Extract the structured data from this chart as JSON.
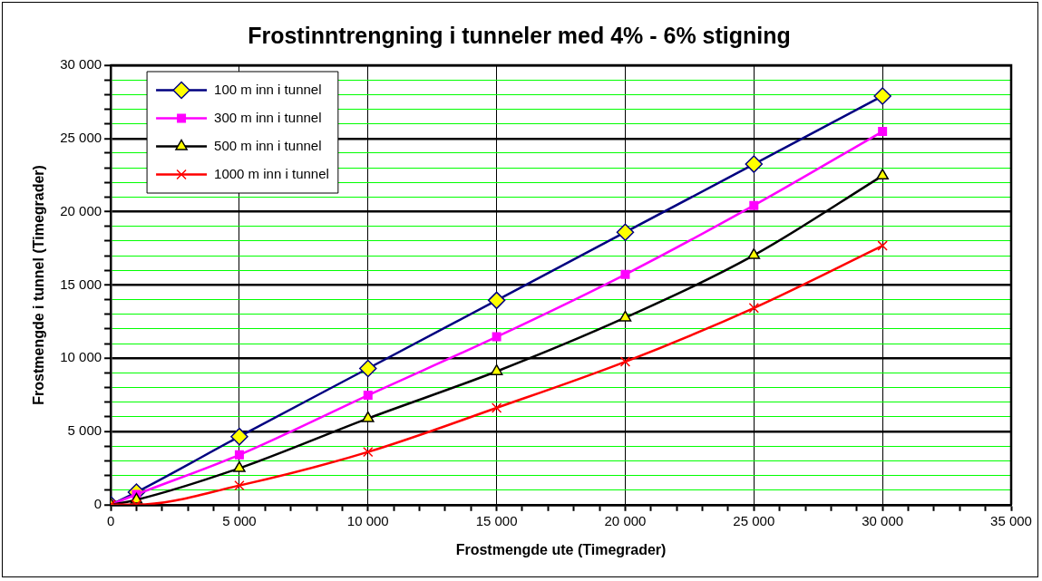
{
  "chart_data": {
    "type": "line",
    "title": "Frostinntrengning i tunneler med 4% - 6% stigning",
    "xlabel": "Frostmengde ute (Timegrader)",
    "ylabel": "Frostmengde i tunnel (Timegrader)",
    "x": [
      0,
      1000,
      5000,
      10000,
      15000,
      20000,
      25000,
      30000
    ],
    "series": [
      {
        "name": "100 m inn i tunnel",
        "color": "#000080",
        "marker": "diamond",
        "values": [
          0,
          850,
          4650,
          9300,
          13950,
          18600,
          23250,
          27900
        ]
      },
      {
        "name": "300 m inn i tunnel",
        "color": "#ff00ff",
        "marker": "square",
        "values": [
          0,
          700,
          3400,
          7470,
          11460,
          15720,
          20430,
          25480
        ]
      },
      {
        "name": "500 m inn i tunnel",
        "color": "#000000",
        "marker": "triangle",
        "values": [
          0,
          330,
          2490,
          5890,
          9100,
          12770,
          17030,
          22460
        ]
      },
      {
        "name": "1000 m inn i tunnel",
        "color": "#ff0000",
        "marker": "cross",
        "values": [
          0,
          0,
          1310,
          3600,
          6610,
          9760,
          13430,
          17680
        ]
      }
    ],
    "xlim": [
      0,
      35000
    ],
    "ylim": [
      0,
      30000
    ],
    "xticks": [
      {
        "value": 0,
        "label": "0"
      },
      {
        "value": 1000,
        "label": null
      },
      {
        "value": 2000,
        "label": null
      },
      {
        "value": 3000,
        "label": null
      },
      {
        "value": 4000,
        "label": null
      },
      {
        "value": 5000,
        "label": "5 000"
      },
      {
        "value": 6000,
        "label": null
      },
      {
        "value": 7000,
        "label": null
      },
      {
        "value": 8000,
        "label": null
      },
      {
        "value": 9000,
        "label": null
      },
      {
        "value": 10000,
        "label": "10 000"
      },
      {
        "value": 11000,
        "label": null
      },
      {
        "value": 12000,
        "label": null
      },
      {
        "value": 13000,
        "label": null
      },
      {
        "value": 14000,
        "label": null
      },
      {
        "value": 15000,
        "label": "15 000"
      },
      {
        "value": 16000,
        "label": null
      },
      {
        "value": 17000,
        "label": null
      },
      {
        "value": 18000,
        "label": null
      },
      {
        "value": 19000,
        "label": null
      },
      {
        "value": 20000,
        "label": "20 000"
      },
      {
        "value": 21000,
        "label": null
      },
      {
        "value": 22000,
        "label": null
      },
      {
        "value": 23000,
        "label": null
      },
      {
        "value": 24000,
        "label": null
      },
      {
        "value": 25000,
        "label": "25 000"
      },
      {
        "value": 26000,
        "label": null
      },
      {
        "value": 27000,
        "label": null
      },
      {
        "value": 28000,
        "label": null
      },
      {
        "value": 29000,
        "label": null
      },
      {
        "value": 30000,
        "label": "30 000"
      },
      {
        "value": 31000,
        "label": null
      },
      {
        "value": 32000,
        "label": null
      },
      {
        "value": 33000,
        "label": null
      },
      {
        "value": 34000,
        "label": null
      },
      {
        "value": 35000,
        "label": "35 000"
      }
    ],
    "yticks": [
      {
        "value": 0,
        "label": "0"
      },
      {
        "value": 1000,
        "label": null
      },
      {
        "value": 2000,
        "label": null
      },
      {
        "value": 3000,
        "label": null
      },
      {
        "value": 4000,
        "label": null
      },
      {
        "value": 5000,
        "label": "5 000"
      },
      {
        "value": 6000,
        "label": null
      },
      {
        "value": 7000,
        "label": null
      },
      {
        "value": 8000,
        "label": null
      },
      {
        "value": 9000,
        "label": null
      },
      {
        "value": 10000,
        "label": "10 000"
      },
      {
        "value": 11000,
        "label": null
      },
      {
        "value": 12000,
        "label": null
      },
      {
        "value": 13000,
        "label": null
      },
      {
        "value": 14000,
        "label": null
      },
      {
        "value": 15000,
        "label": "15 000"
      },
      {
        "value": 16000,
        "label": null
      },
      {
        "value": 17000,
        "label": null
      },
      {
        "value": 18000,
        "label": null
      },
      {
        "value": 19000,
        "label": null
      },
      {
        "value": 20000,
        "label": "20 000"
      },
      {
        "value": 21000,
        "label": null
      },
      {
        "value": 22000,
        "label": null
      },
      {
        "value": 23000,
        "label": null
      },
      {
        "value": 24000,
        "label": null
      },
      {
        "value": 25000,
        "label": "25 000"
      },
      {
        "value": 26000,
        "label": null
      },
      {
        "value": 27000,
        "label": null
      },
      {
        "value": 28000,
        "label": null
      },
      {
        "value": 29000,
        "label": null
      },
      {
        "value": 30000,
        "label": "30 000"
      }
    ],
    "grid": true,
    "legend": "top left",
    "line_style": "solid"
  }
}
